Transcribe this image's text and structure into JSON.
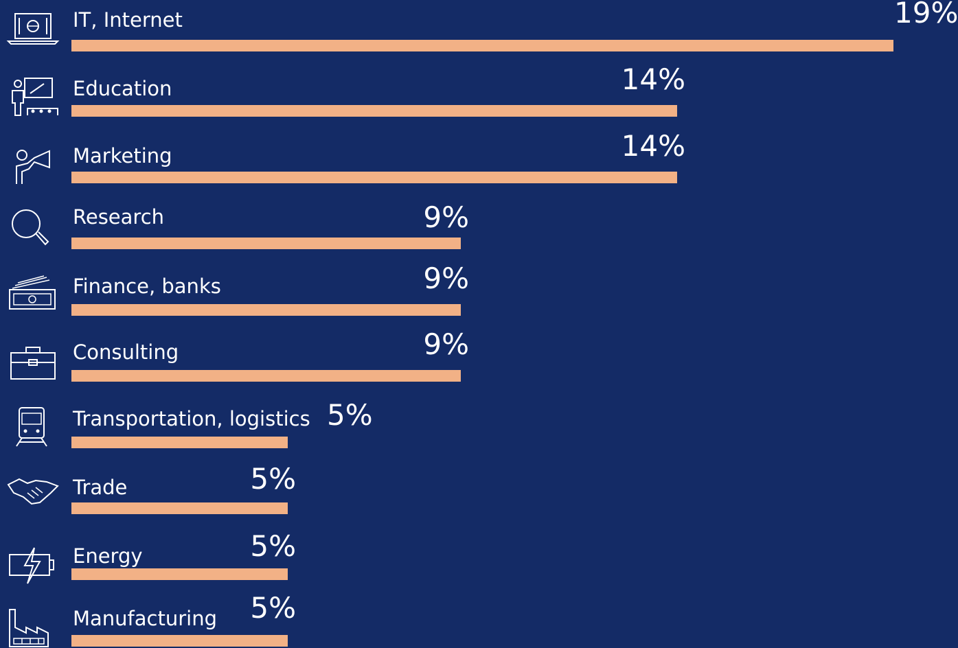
{
  "chart_data": {
    "type": "bar",
    "orientation": "horizontal",
    "categories": [
      "IT, Internet",
      "Education",
      "Marketing",
      "Research",
      "Finance, banks",
      "Consulting",
      "Transportation, logistics",
      "Trade",
      "Energy",
      "Manufacturing"
    ],
    "values": [
      19,
      14,
      14,
      9,
      9,
      9,
      5,
      5,
      5,
      5
    ],
    "value_labels": [
      "19%",
      "14%",
      "14%",
      "9%",
      "9%",
      "9%",
      "5%",
      "5%",
      "5%",
      "5%"
    ],
    "icons": [
      "laptop-globe-icon",
      "teacher-board-icon",
      "megaphone-person-icon",
      "magnifier-icon",
      "money-bills-icon",
      "briefcase-icon",
      "train-icon",
      "handshake-icon",
      "battery-lightning-icon",
      "factory-icon"
    ],
    "bar_color": "#f2b186",
    "background": "#142b66",
    "text_color": "#ffffff"
  }
}
